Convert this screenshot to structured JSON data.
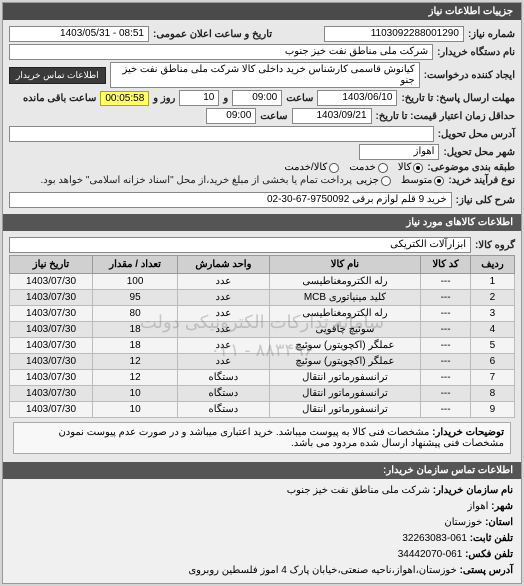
{
  "headers": {
    "main": "جزییات اطلاعات نیاز",
    "items": "اطلاعات کالاهای مورد نیاز",
    "contact": "اطلاعات تماس سازمان خریدار:"
  },
  "labels": {
    "request_number": "شماره نیاز:",
    "announce_datetime": "تاریخ و ساعت اعلان عمومی:",
    "buyer_org": "نام دستگاه خریدار:",
    "requester": "ایجاد کننده درخواست:",
    "contact_btn": "اطلاعات تماس خریدار",
    "deadline_from": "مهلت ارسال پاسخ: تا تاریخ:",
    "hour": "ساعت",
    "and": "و",
    "day": "روز و",
    "remaining": "ساعت باقی مانده",
    "valid_until": "حداقل زمان اعتبار قیمت: تا تاریخ:",
    "delivery_addr": "آدرس محل تحویل:",
    "delivery_city": "شهر محل تحویل:",
    "category": "طبقه بندی موضوعی:",
    "process_type": "نوع فرآیند خرید:",
    "process_note": "پرداخت تمام یا بخشی از مبلغ خرید،از محل \"اسناد خزانه اسلامی\" خواهد بود.",
    "need_title": "شرح کلی نیاز:",
    "goods_group": "گروه کالا:",
    "buyer_note_label": "توضیحات خریدار:"
  },
  "values": {
    "request_number": "1103092288001290",
    "announce_datetime": "08:51 - 1403/05/31",
    "buyer_org": "شرکت ملی مناطق نفت خیز جنوب",
    "requester": "کیانوش قاسمی کارشناس خرید داخلی کالا شرکت ملی مناطق نفت خیز جنو",
    "deadline_date": "1403/06/10",
    "deadline_hour": "09:00",
    "remaining_days": "10",
    "remaining_time": "00:05:58",
    "valid_date": "1403/09/21",
    "valid_hour": "09:00",
    "delivery_addr": "",
    "delivery_city": "اهواز",
    "need_title": "خرید 9 قلم لوازم برقی 9750092-67-30-02",
    "goods_group": "ابزارآلات الکتریکی",
    "buyer_note": "مشخصات فنی کالا به پیوست میباشد. خرید اعتباری میباشد و در صورت عدم پیوست نمودن مشخصات فنی پیشنهاد ارسال شده مردود می باشد."
  },
  "radios": {
    "category": [
      {
        "label": "کالا",
        "checked": true
      },
      {
        "label": "خدمت",
        "checked": false
      },
      {
        "label": "کالا/خدمت",
        "checked": false
      }
    ],
    "process": [
      {
        "label": "متوسط",
        "checked": true
      },
      {
        "label": "جزیی",
        "checked": false
      }
    ]
  },
  "table": {
    "columns": [
      "ردیف",
      "کد کالا",
      "نام کالا",
      "واحد شمارش",
      "تعداد / مقدار",
      "تاریخ نیاز"
    ],
    "rows": [
      [
        "1",
        "---",
        "رله الکترومغناطیسی",
        "عدد",
        "100",
        "1403/07/30"
      ],
      [
        "2",
        "---",
        "کلید مینیاتوری MCB",
        "عدد",
        "95",
        "1403/07/30"
      ],
      [
        "3",
        "---",
        "رله الکترومغناطیسی",
        "عدد",
        "80",
        "1403/07/30"
      ],
      [
        "4",
        "---",
        "سوئیچ چاقویی",
        "عدد",
        "18",
        "1403/07/30"
      ],
      [
        "5",
        "---",
        "عملگر (اکچویتور) سوئیچ",
        "عدد",
        "18",
        "1403/07/30"
      ],
      [
        "6",
        "---",
        "عملگر (اکچویتور) سوئیچ",
        "عدد",
        "12",
        "1403/07/30"
      ],
      [
        "7",
        "---",
        "ترانسفورماتور انتقال",
        "دستگاه",
        "12",
        "1403/07/30"
      ],
      [
        "8",
        "---",
        "ترانسفورماتور انتقال",
        "دستگاه",
        "10",
        "1403/07/30"
      ],
      [
        "9",
        "---",
        "ترانسفورماتور انتقال",
        "دستگاه",
        "10",
        "1403/07/30"
      ]
    ]
  },
  "watermark": {
    "line1": "سامانه تدارکات الکترونیکی دولت",
    "line2": "۸۸۳۴۹۶ - ۰۲۱"
  },
  "contact": {
    "org_label": "نام سازمان خریدار:",
    "org": "شرکت ملی مناطق نفت خیز جنوب",
    "city_label": "شهر:",
    "city": "اهواز",
    "province_label": "استان:",
    "province": "خوزستان",
    "phone_label": "تلفن ثابت:",
    "phone": "061-32263083",
    "fax_label": "تلفن فکس:",
    "fax": "061-34442070",
    "address_label": "آدرس پستی:",
    "address": "خوزستان،اهواز،ناحیه صنعتی،خیابان پارک 4 اموز فلسطین روبروی"
  }
}
